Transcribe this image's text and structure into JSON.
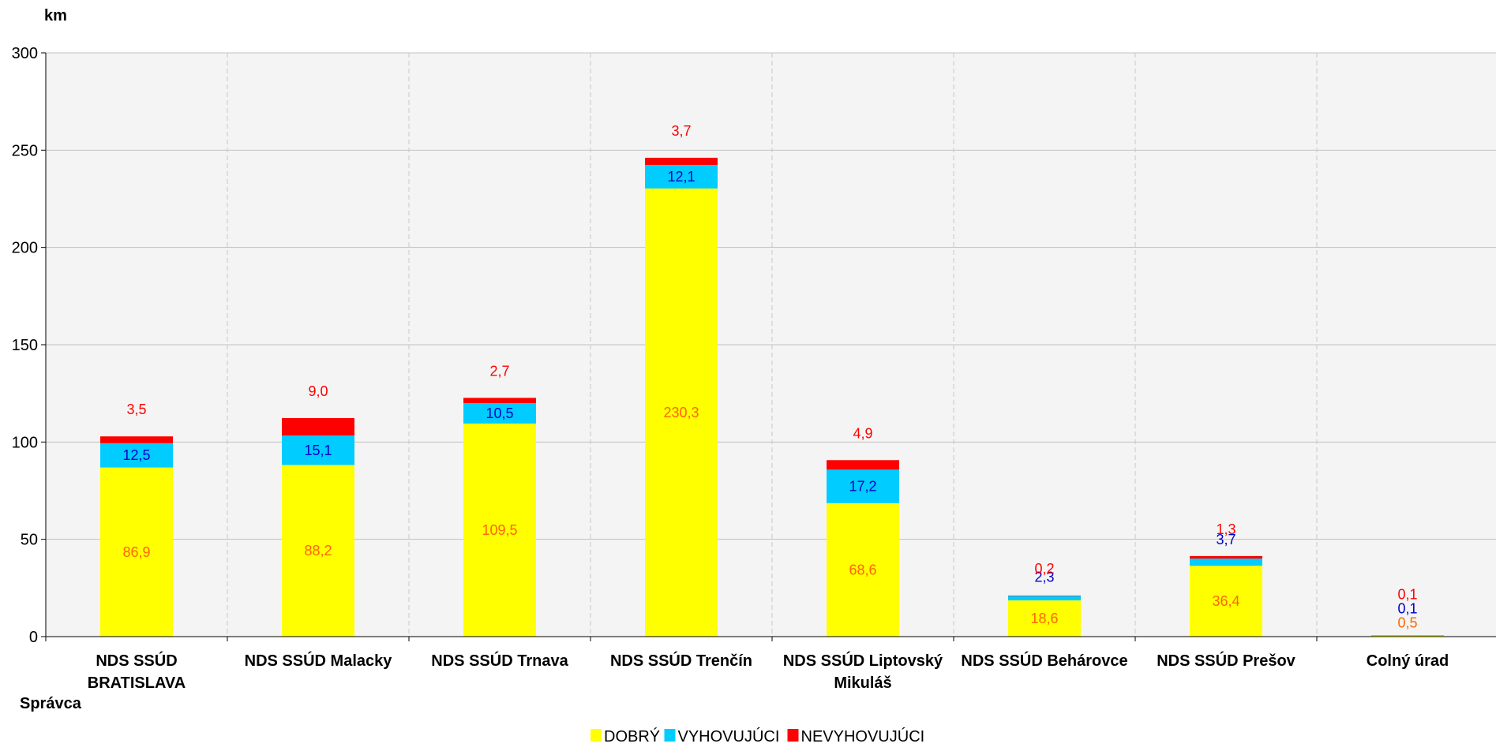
{
  "chart_data": {
    "type": "bar",
    "stacked": true,
    "ylabel": "km",
    "xlabel": "Správca",
    "ylim": [
      0,
      300
    ],
    "yticks": [
      0,
      50,
      100,
      150,
      200,
      250,
      300
    ],
    "yticks_text": [
      "0",
      "50",
      "100",
      "150",
      "200",
      "250",
      "300"
    ],
    "grid": "horizontal solid, vertical dashed",
    "legend_position": "bottom",
    "categories": [
      [
        "NDS SSÚD",
        "BRATISLAVA"
      ],
      [
        "NDS SSÚD Malacky"
      ],
      [
        "NDS SSÚD Trnava"
      ],
      [
        "NDS SSÚD Trenčín"
      ],
      [
        "NDS SSÚD Liptovský",
        "Mikuláš"
      ],
      [
        "NDS SSÚD Behárovce"
      ],
      [
        "NDS SSÚD Prešov"
      ],
      [
        "Colný úrad"
      ]
    ],
    "series": [
      {
        "name": "DOBRÝ",
        "color": "#ffff00",
        "label_color": "#ff6600",
        "values": [
          86.9,
          88.2,
          109.5,
          230.3,
          68.6,
          18.6,
          36.4,
          0.5
        ],
        "labels": [
          "86,9",
          "88,2",
          "109,5",
          "230,3",
          "68,6",
          "18,6",
          "36,4",
          "0,5"
        ]
      },
      {
        "name": "VYHOVUJÚCI",
        "color": "#00ccff",
        "label_color": "#0000cc",
        "values": [
          12.5,
          15.1,
          10.5,
          12.1,
          17.2,
          2.3,
          3.7,
          0.1
        ],
        "labels": [
          "12,5",
          "15,1",
          "10,5",
          "12,1",
          "17,2",
          "2,3",
          "3,7",
          "0,1"
        ]
      },
      {
        "name": "NEVYHOVUJÚCI",
        "color": "#ff0000",
        "label_color": "#ff0000",
        "values": [
          3.5,
          9.0,
          2.7,
          3.7,
          4.9,
          0.2,
          1.3,
          0.1
        ],
        "labels": [
          "3,5",
          "9,0",
          "2,7",
          "3,7",
          "4,9",
          "0,2",
          "1,3",
          "0,1"
        ]
      }
    ]
  }
}
